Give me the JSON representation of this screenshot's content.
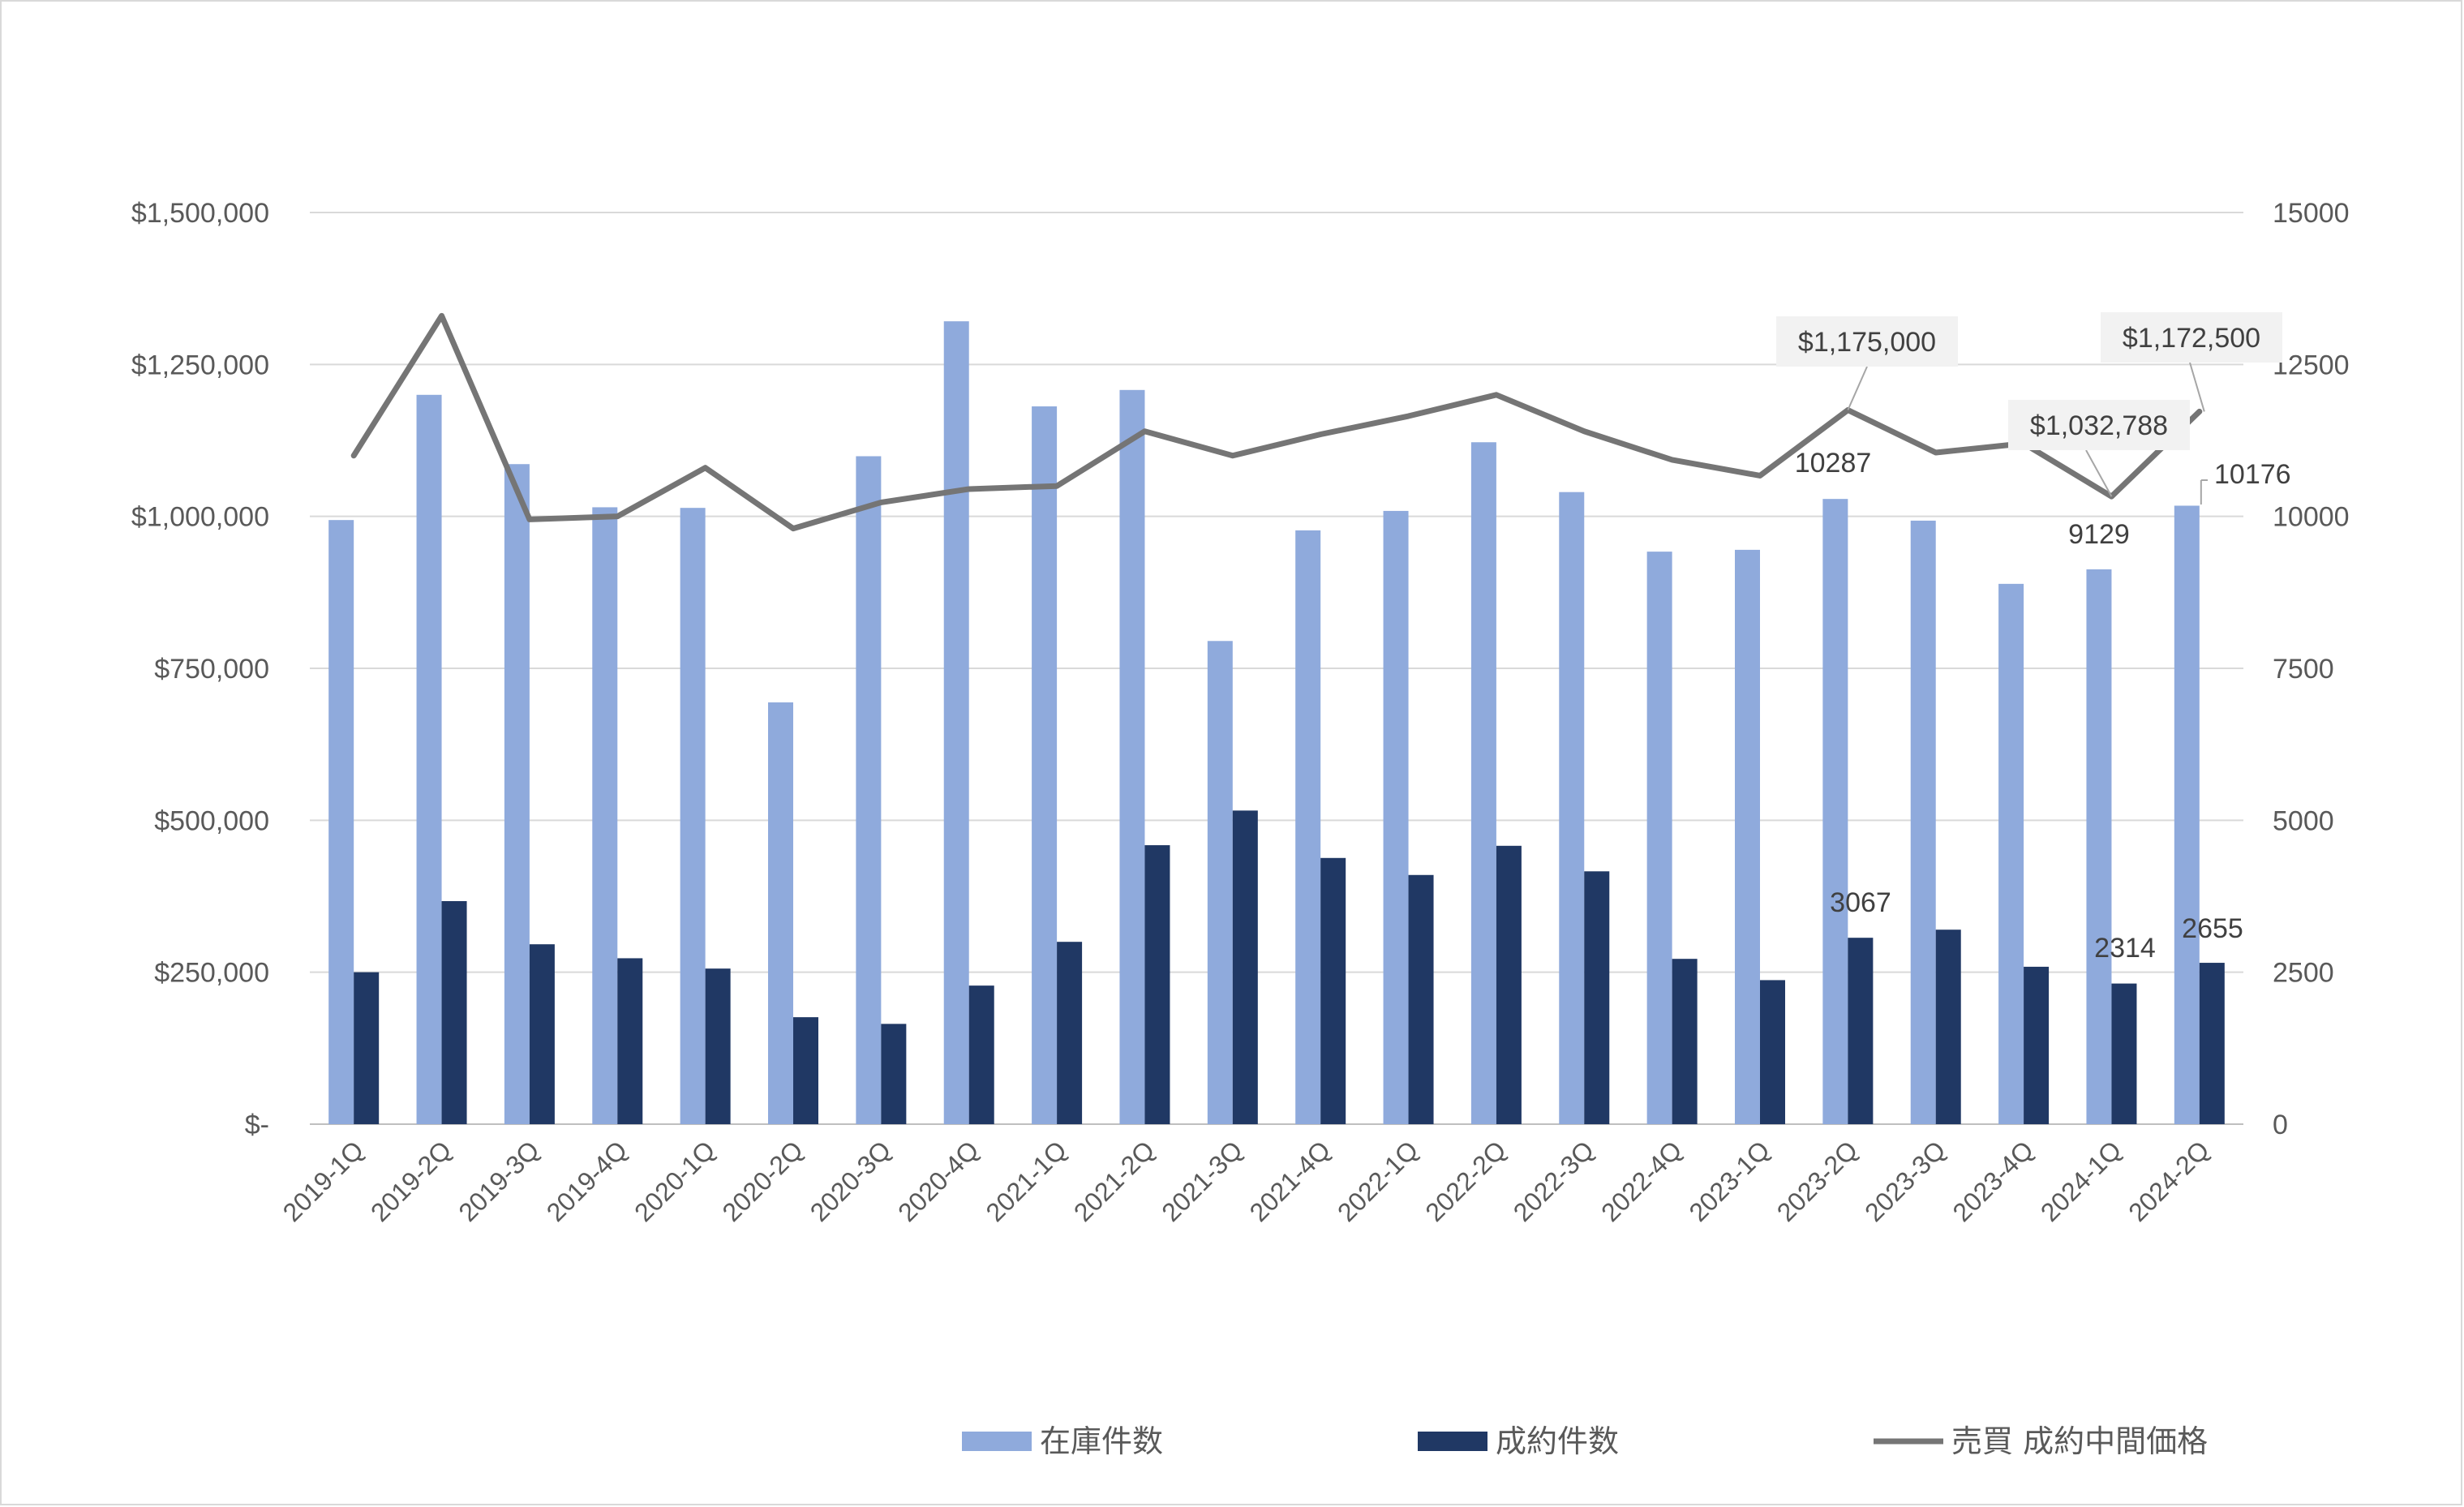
{
  "chart_data": {
    "type": "bar",
    "categories": [
      "2019-1Q",
      "2019-2Q",
      "2019-3Q",
      "2019-4Q",
      "2020-1Q",
      "2020-2Q",
      "2020-3Q",
      "2020-4Q",
      "2021-1Q",
      "2021-2Q",
      "2021-3Q",
      "2021-4Q",
      "2022-1Q",
      "2022-2Q",
      "2022-3Q",
      "2022-4Q",
      "2023-1Q",
      "2023-2Q",
      "2023-3Q",
      "2023-4Q",
      "2024-1Q",
      "2024-2Q"
    ],
    "series": [
      {
        "name": "在庫件数",
        "type": "bar",
        "axis": "right",
        "color": "#8faadc",
        "values": [
          9940,
          12000,
          10860,
          10150,
          10140,
          6940,
          10990,
          13210,
          11810,
          12080,
          7950,
          9770,
          10090,
          11220,
          10400,
          9420,
          9450,
          10287,
          9930,
          8890,
          9129,
          10176
        ]
      },
      {
        "name": "成約件数",
        "type": "bar",
        "axis": "right",
        "color": "#203864",
        "values": [
          2500,
          3670,
          2960,
          2730,
          2560,
          1760,
          1650,
          2280,
          3000,
          4590,
          5160,
          4380,
          4100,
          4580,
          4160,
          2720,
          2370,
          3067,
          3200,
          2590,
          2314,
          2655
        ]
      },
      {
        "name": "売買 成約中間価格",
        "type": "line",
        "axis": "left",
        "color": "#757575",
        "values": [
          1100000,
          1330000,
          995000,
          1000000,
          1080000,
          980000,
          1023000,
          1045000,
          1050000,
          1140000,
          1100000,
          1135000,
          1165000,
          1200000,
          1140000,
          1093000,
          1067000,
          1175000,
          1105000,
          1120000,
          1032788,
          1172500
        ]
      }
    ],
    "data_labels": [
      {
        "series": 0,
        "index": 17,
        "text": "10287"
      },
      {
        "series": 0,
        "index": 20,
        "text": "9129"
      },
      {
        "series": 0,
        "index": 21,
        "text": "10176"
      },
      {
        "series": 1,
        "index": 17,
        "text": "3067"
      },
      {
        "series": 1,
        "index": 20,
        "text": "2314"
      },
      {
        "series": 1,
        "index": 21,
        "text": "2655"
      },
      {
        "series": 2,
        "index": 17,
        "text": "$1,175,000"
      },
      {
        "series": 2,
        "index": 20,
        "text": "$1,032,788"
      },
      {
        "series": 2,
        "index": 21,
        "text": "$1,172,500"
      }
    ],
    "y_left": {
      "range": [
        0,
        1500000
      ],
      "ticks": [
        "$-",
        "$250,000",
        "$500,000",
        "$750,000",
        "$1,000,000",
        "$1,250,000",
        "$1,500,000"
      ]
    },
    "y_right": {
      "range": [
        0,
        15000
      ],
      "ticks": [
        "0",
        "2500",
        "5000",
        "7500",
        "10000",
        "12500",
        "15000"
      ]
    },
    "grid": true,
    "legend_position": "bottom",
    "title": "",
    "xlabel": "",
    "ylabel": ""
  }
}
